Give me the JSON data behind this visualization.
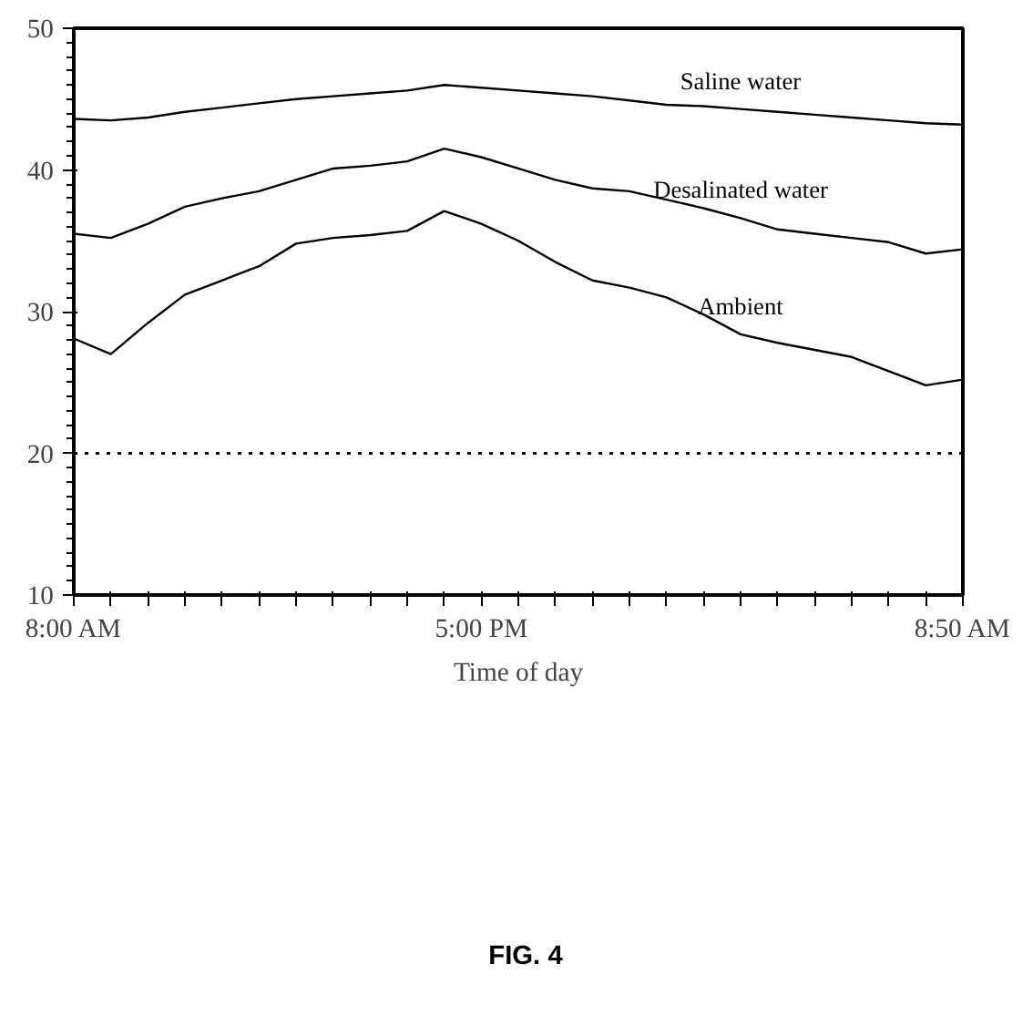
{
  "chart_data": {
    "type": "line",
    "xlabel": "Time of day",
    "annotations": [
      "FIG. 4"
    ],
    "categories": [
      "8:00 AM",
      null,
      null,
      null,
      null,
      null,
      null,
      null,
      null,
      null,
      null,
      "5:00 PM",
      null,
      null,
      null,
      null,
      null,
      null,
      null,
      null,
      null,
      null,
      null,
      null,
      "8:50 AM"
    ],
    "ylim": [
      10,
      50
    ],
    "yticks": [
      10,
      20,
      30,
      40,
      50
    ],
    "series": [
      {
        "name": "Saline water",
        "color": "#000000",
        "values": [
          43.6,
          43.5,
          43.7,
          44.1,
          44.4,
          44.7,
          45.0,
          45.2,
          45.4,
          45.6,
          46.0,
          45.8,
          45.6,
          45.4,
          45.2,
          44.9,
          44.6,
          44.5,
          44.3,
          44.1,
          43.9,
          43.7,
          43.5,
          43.3,
          43.2
        ]
      },
      {
        "name": "Desalinated water",
        "color": "#000000",
        "values": [
          35.5,
          35.2,
          36.2,
          37.4,
          38.0,
          38.5,
          39.3,
          40.1,
          40.3,
          40.6,
          41.5,
          40.9,
          40.1,
          39.3,
          38.7,
          38.5,
          37.9,
          37.3,
          36.6,
          35.8,
          35.5,
          35.2,
          34.9,
          34.1,
          34.4
        ]
      },
      {
        "name": "Ambient",
        "color": "#000000",
        "values": [
          28.1,
          27.0,
          29.2,
          31.2,
          32.2,
          33.2,
          34.8,
          35.2,
          35.4,
          35.7,
          37.1,
          36.2,
          35.0,
          33.5,
          32.2,
          31.7,
          31.0,
          29.8,
          28.4,
          27.8,
          27.3,
          26.8,
          25.8,
          24.8,
          25.2
        ]
      }
    ],
    "ref_lines": [
      {
        "axis": "y",
        "value": 20,
        "line_style": "dotted",
        "color": "#000000"
      }
    ],
    "marker": "none",
    "line_style": "solid",
    "grid": false
  }
}
